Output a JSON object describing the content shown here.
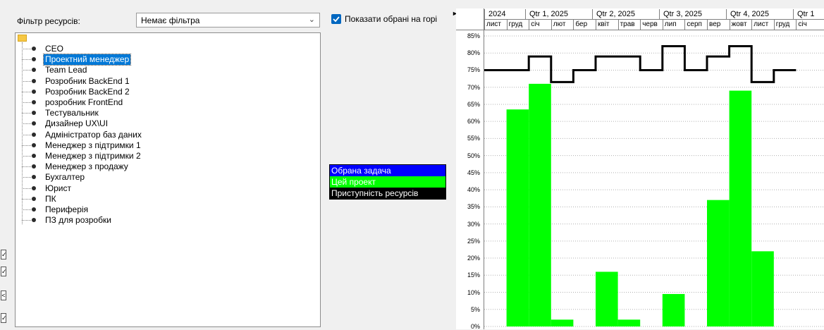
{
  "filter": {
    "label": "Фільтр ресурсів:",
    "value": "Немає фільтра"
  },
  "resources": [
    {
      "name": "CEO",
      "selected": false
    },
    {
      "name": "Проектний менеджер",
      "selected": true
    },
    {
      "name": "Team Lead",
      "selected": false
    },
    {
      "name": "Розробник BackEnd 1",
      "selected": false
    },
    {
      "name": "Розробник BackEnd 2",
      "selected": false
    },
    {
      "name": "розробник FrontEnd",
      "selected": false
    },
    {
      "name": "Тестувальник",
      "selected": false
    },
    {
      "name": "Дизайнер UX\\UI",
      "selected": false
    },
    {
      "name": "Адміністратор баз даних",
      "selected": false
    },
    {
      "name": "Менеджер з підтримки 1",
      "selected": false
    },
    {
      "name": "Менеджер з підтримки 2",
      "selected": false
    },
    {
      "name": "Менеджер з продажу",
      "selected": false
    },
    {
      "name": "Бухгалтер",
      "selected": false
    },
    {
      "name": "Юрист",
      "selected": false
    },
    {
      "name": "ПК",
      "selected": false
    },
    {
      "name": "Периферія",
      "selected": false
    },
    {
      "name": "ПЗ для розробки",
      "selected": false
    }
  ],
  "show_selected_on_top": {
    "label": "Показати обрані на горі",
    "checked": true
  },
  "legend": [
    {
      "label": "Обрана задача",
      "bg": "#0000ff",
      "fg": "#ffffff"
    },
    {
      "label": "Цей проект",
      "bg": "#00ff00",
      "fg": "#ffffff"
    },
    {
      "label": "Приступність ресурсів",
      "bg": "#000000",
      "fg": "#ffffff"
    }
  ],
  "timescale": {
    "top": [
      "2024",
      "Qtr 1, 2025",
      "Qtr 2, 2025",
      "Qtr 3, 2025",
      "Qtr 4, 2025",
      "Qtr 1"
    ],
    "months": [
      "лист",
      "груд",
      "січ",
      "лют",
      "бер",
      "квіт",
      "трав",
      "черв",
      "лип",
      "серп",
      "вер",
      "жовт",
      "лист",
      "груд",
      "січ"
    ]
  },
  "chart_data": {
    "type": "bar",
    "y_ticks": [
      "85%",
      "80%",
      "75%",
      "70%",
      "65%",
      "60%",
      "55%",
      "50%",
      "45%",
      "40%",
      "35%",
      "30%",
      "25%",
      "20%",
      "15%",
      "10%",
      "5%",
      "0%"
    ],
    "ylim": [
      0,
      85
    ],
    "categories": [
      "лист",
      "груд",
      "січ",
      "лют",
      "бер",
      "квіт",
      "трав",
      "черв",
      "лип",
      "серп",
      "вер",
      "жовт",
      "лист",
      "груд",
      "січ"
    ],
    "series": [
      {
        "name": "Цей проект",
        "type": "bar",
        "color": "#00ff00",
        "values": [
          0,
          63.5,
          71,
          2,
          0,
          16,
          2,
          0,
          9.5,
          0,
          37,
          69,
          22,
          0,
          0
        ]
      },
      {
        "name": "Приступність ресурсів",
        "type": "step",
        "color": "#000000",
        "values": [
          75,
          75,
          79,
          71.5,
          75,
          79,
          79,
          75,
          82,
          75,
          79,
          82,
          71.5,
          75,
          null
        ]
      }
    ],
    "grid": true,
    "colors": {
      "bar": "#00ff00",
      "line": "#000000",
      "grid": "#b0b0b0"
    }
  }
}
